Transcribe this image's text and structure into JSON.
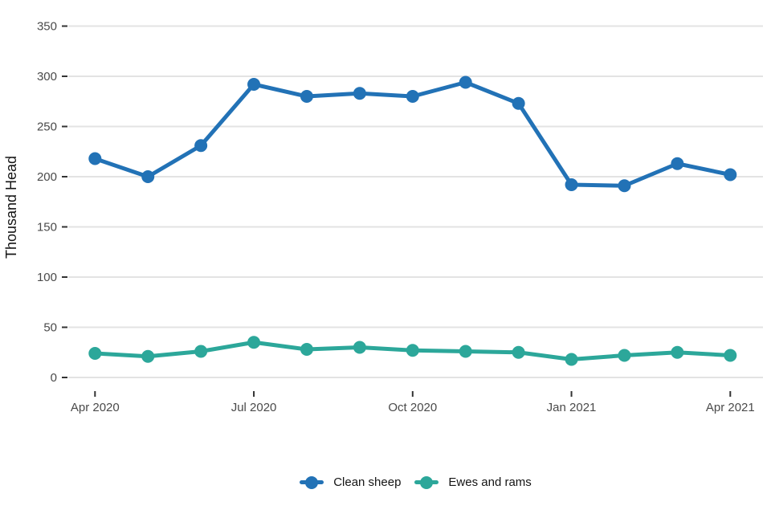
{
  "chart_data": {
    "type": "line",
    "title": "",
    "xlabel": "",
    "ylabel": "Thousand Head",
    "x": [
      "Apr 2020",
      "May 2020",
      "Jun 2020",
      "Jul 2020",
      "Aug 2020",
      "Sep 2020",
      "Oct 2020",
      "Nov 2020",
      "Dec 2020",
      "Jan 2021",
      "Feb 2021",
      "Mar 2021",
      "Apr 2021"
    ],
    "x_tick_labels": [
      "Apr 2020",
      "Jul 2020",
      "Oct 2020",
      "Jan 2021",
      "Apr 2021"
    ],
    "x_tick_indices": [
      0,
      3,
      6,
      9,
      12
    ],
    "y_ticks": [
      0,
      50,
      100,
      150,
      200,
      250,
      300,
      350
    ],
    "ylim": [
      0,
      365
    ],
    "grid": "horizontal-only",
    "legend_position": "bottom-center",
    "series": [
      {
        "name": "Clean sheep",
        "color": "#2272b6",
        "values": [
          218,
          200,
          231,
          292,
          280,
          283,
          280,
          294,
          273,
          192,
          191,
          213,
          202
        ]
      },
      {
        "name": "Ewes and rams",
        "color": "#2ca79a",
        "values": [
          24,
          21,
          26,
          35,
          28,
          30,
          27,
          26,
          25,
          18,
          22,
          25,
          22
        ]
      }
    ],
    "colors": {
      "background": "#ffffff",
      "gridline": "#e3e3e3",
      "tick_mark": "#333333",
      "tick_label": "#4a4a4a",
      "axis_title": "#141414"
    }
  }
}
